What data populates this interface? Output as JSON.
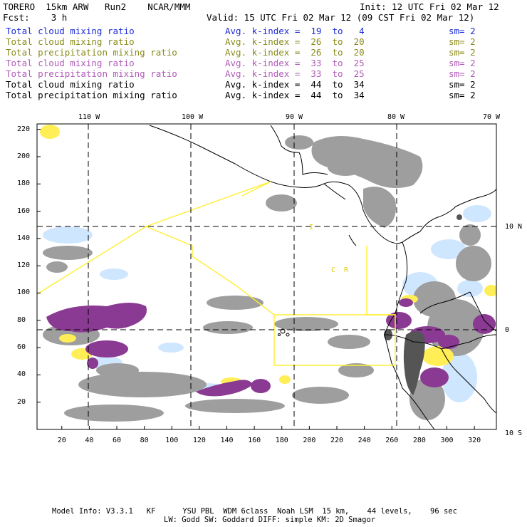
{
  "header": {
    "title": "TORERO  15km ARW   Run2    NCAR/MMM",
    "init": "Init: 12 UTC Fri 02 Mar 12",
    "fcst": "Fcst:    3 h",
    "valid": "Valid: 15 UTC Fri 02 Mar 12 (09 CST Fri 02 Mar 12)"
  },
  "colors": {
    "blue": "#1c2bd6",
    "olive": "#8a8a1a",
    "purple": "#b05ab8",
    "black": "#000000",
    "yellow_boundary": "#ffee33",
    "gray_fill": "#9e9e9e",
    "dark_gray_fill": "#555555",
    "cyan_fill": "#cfe6ff",
    "magenta_fill": "#8a3a92"
  },
  "legend": [
    {
      "field": "Total cloud mixing ratio",
      "kindex": "Avg. k-index =  19  to   4",
      "sm": "sm= 2",
      "color": "#1c2bd6"
    },
    {
      "field": "Total cloud mixing ratio",
      "kindex": "Avg. k-index =  26  to  20",
      "sm": "sm= 2",
      "color": "#8a8a1a"
    },
    {
      "field": "Total precipitation mixing ratio",
      "kindex": "Avg. k-index =  26  to  20",
      "sm": "sm= 2",
      "color": "#8a8a1a"
    },
    {
      "field": "Total cloud mixing ratio",
      "kindex": "Avg. k-index =  33  to  25",
      "sm": "sm= 2",
      "color": "#b05ab8"
    },
    {
      "field": "Total precipitation mixing ratio",
      "kindex": "Avg. k-index =  33  to  25",
      "sm": "sm= 2",
      "color": "#b05ab8"
    },
    {
      "field": "Total cloud mixing ratio",
      "kindex": "Avg. k-index =  44  to  34",
      "sm": "sm= 2",
      "color": "#000000"
    },
    {
      "field": "Total precipitation mixing ratio",
      "kindex": "Avg. k-index =  44  to  34",
      "sm": "sm= 2",
      "color": "#000000"
    }
  ],
  "map": {
    "top_lon_labels": [
      "110 W",
      "100 W",
      "90 W",
      "80 W",
      "70 W"
    ],
    "right_lat_labels": [
      "10 N",
      "0",
      "10 S"
    ],
    "left_y_ticks": [
      "220",
      "200",
      "180",
      "160",
      "140",
      "120",
      "100",
      "80",
      "60",
      "40",
      "20"
    ],
    "bottom_x_ticks": [
      "20",
      "40",
      "60",
      "80",
      "100",
      "120",
      "140",
      "160",
      "180",
      "200",
      "220",
      "240",
      "260",
      "280",
      "300",
      "320"
    ],
    "annotation_i": "I",
    "annotation_cr": "C  R"
  },
  "footer": {
    "line1": "Model Info: V3.3.1   KF      YSU PBL  WDM 6class  Noah LSM  15 km,    44 levels,    96 sec",
    "line2": "LW: Godd SW: Goddard DIFF: simple KM: 2D Smagor"
  }
}
